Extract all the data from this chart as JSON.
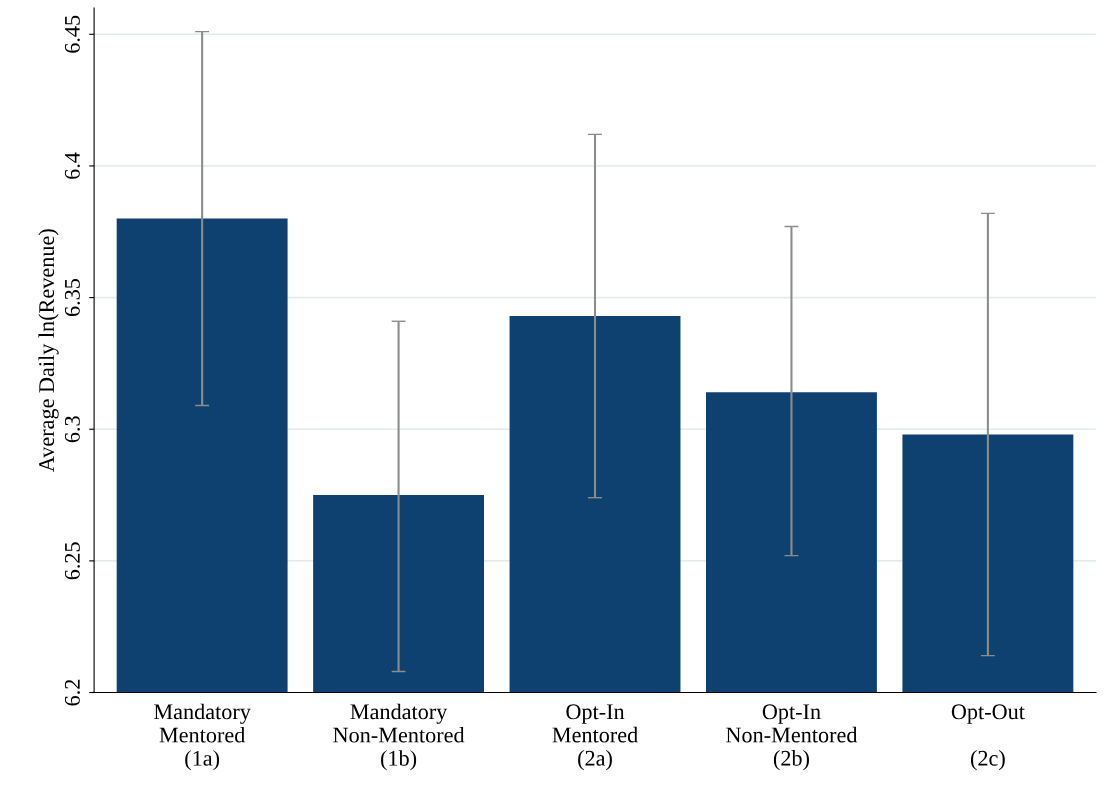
{
  "chart_data": {
    "type": "bar",
    "ylabel": "Average Daily ln(Revenue)",
    "categories": [
      "Mandatory\nMentored\n(1a)",
      "Mandatory\nNon-Mentored\n(1b)",
      "Opt-In\nMentored\n(2a)",
      "Opt-In\nNon-Mentored\n(2b)",
      "Opt-Out\n\n(2c)"
    ],
    "values": [
      6.38,
      6.275,
      6.343,
      6.314,
      6.298
    ],
    "errors": [
      [
        6.309,
        6.451
      ],
      [
        6.208,
        6.341
      ],
      [
        6.274,
        6.412
      ],
      [
        6.252,
        6.377
      ],
      [
        6.214,
        6.382
      ]
    ],
    "color": "#0f4170",
    "ylim": [
      6.2,
      6.46
    ],
    "yticks": [
      6.2,
      6.25,
      6.3,
      6.35,
      6.4,
      6.45
    ],
    "grid": "y"
  }
}
